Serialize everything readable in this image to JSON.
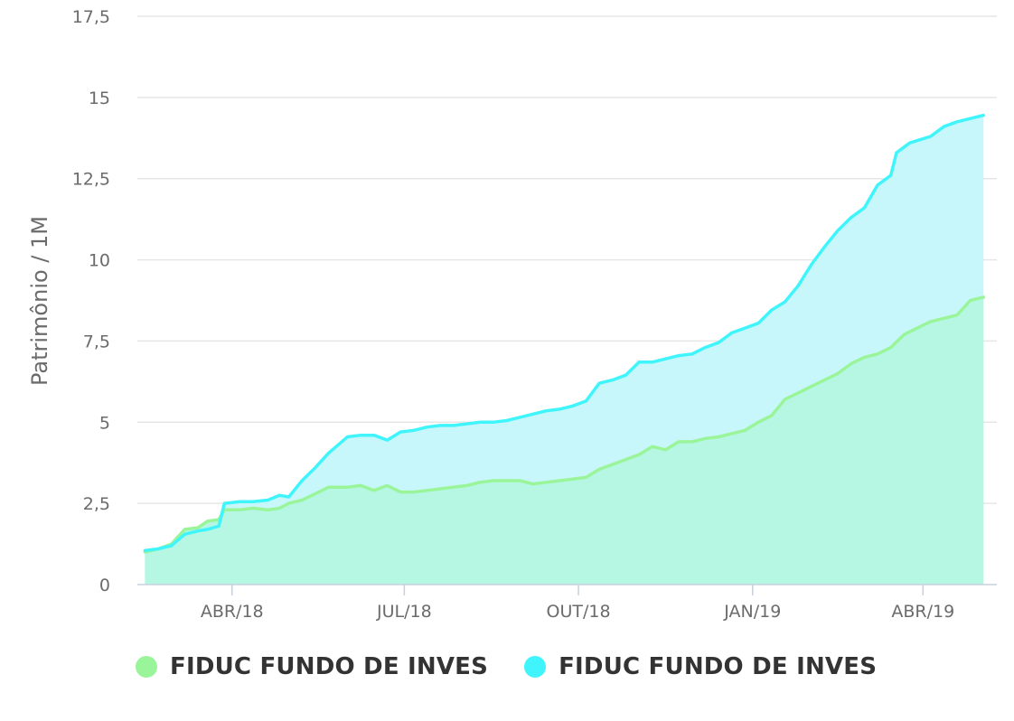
{
  "chart_data": {
    "type": "area",
    "ylabel": "Patrimônio / 1M",
    "xlabel": "",
    "ylim": [
      0,
      17.5
    ],
    "y_ticks": [
      "0",
      "2,5",
      "5",
      "7,5",
      "10",
      "12,5",
      "15",
      "17,5"
    ],
    "y_tick_values": [
      0,
      2.5,
      5,
      7.5,
      10,
      12.5,
      15,
      17.5
    ],
    "x_range": [
      "2018-02-10",
      "2019-05-10"
    ],
    "x_ticks": [
      {
        "label": "ABR/18",
        "date": "2018-04-01"
      },
      {
        "label": "JUL/18",
        "date": "2018-07-01"
      },
      {
        "label": "OUT/18",
        "date": "2018-10-01"
      },
      {
        "label": "JAN/19",
        "date": "2019-01-01"
      },
      {
        "label": "ABR/19",
        "date": "2019-04-01"
      }
    ],
    "grid": true,
    "legend_position": "bottom-left",
    "series": [
      {
        "name": "FIDUC FUNDO DE INVES",
        "color": "#9af59a",
        "fill": "#b6f7e4",
        "points": [
          [
            "2018-02-14",
            1.0
          ],
          [
            "2018-02-21",
            1.1
          ],
          [
            "2018-02-28",
            1.25
          ],
          [
            "2018-03-07",
            1.7
          ],
          [
            "2018-03-14",
            1.75
          ],
          [
            "2018-03-19",
            1.95
          ],
          [
            "2018-03-25",
            2.0
          ],
          [
            "2018-03-28",
            2.3
          ],
          [
            "2018-04-05",
            2.3
          ],
          [
            "2018-04-12",
            2.35
          ],
          [
            "2018-04-20",
            2.3
          ],
          [
            "2018-04-26",
            2.35
          ],
          [
            "2018-05-01",
            2.5
          ],
          [
            "2018-05-08",
            2.6
          ],
          [
            "2018-05-15",
            2.8
          ],
          [
            "2018-05-22",
            3.0
          ],
          [
            "2018-06-01",
            3.0
          ],
          [
            "2018-06-08",
            3.05
          ],
          [
            "2018-06-15",
            2.9
          ],
          [
            "2018-06-22",
            3.05
          ],
          [
            "2018-06-29",
            2.85
          ],
          [
            "2018-07-06",
            2.85
          ],
          [
            "2018-07-13",
            2.9
          ],
          [
            "2018-07-20",
            2.95
          ],
          [
            "2018-07-27",
            3.0
          ],
          [
            "2018-08-03",
            3.05
          ],
          [
            "2018-08-10",
            3.15
          ],
          [
            "2018-08-17",
            3.2
          ],
          [
            "2018-08-24",
            3.2
          ],
          [
            "2018-08-31",
            3.2
          ],
          [
            "2018-09-07",
            3.1
          ],
          [
            "2018-09-14",
            3.15
          ],
          [
            "2018-09-21",
            3.2
          ],
          [
            "2018-09-28",
            3.25
          ],
          [
            "2018-10-05",
            3.3
          ],
          [
            "2018-10-12",
            3.55
          ],
          [
            "2018-10-19",
            3.7
          ],
          [
            "2018-10-26",
            3.85
          ],
          [
            "2018-11-02",
            4.0
          ],
          [
            "2018-11-09",
            4.25
          ],
          [
            "2018-11-16",
            4.15
          ],
          [
            "2018-11-23",
            4.4
          ],
          [
            "2018-11-30",
            4.4
          ],
          [
            "2018-12-07",
            4.5
          ],
          [
            "2018-12-14",
            4.55
          ],
          [
            "2018-12-21",
            4.65
          ],
          [
            "2018-12-28",
            4.75
          ],
          [
            "2019-01-04",
            5.0
          ],
          [
            "2019-01-11",
            5.2
          ],
          [
            "2019-01-18",
            5.7
          ],
          [
            "2019-01-25",
            5.9
          ],
          [
            "2019-02-01",
            6.1
          ],
          [
            "2019-02-08",
            6.3
          ],
          [
            "2019-02-15",
            6.5
          ],
          [
            "2019-02-22",
            6.8
          ],
          [
            "2019-03-01",
            7.0
          ],
          [
            "2019-03-08",
            7.1
          ],
          [
            "2019-03-15",
            7.3
          ],
          [
            "2019-03-22",
            7.7
          ],
          [
            "2019-03-29",
            7.9
          ],
          [
            "2019-04-05",
            8.1
          ],
          [
            "2019-04-12",
            8.2
          ],
          [
            "2019-04-19",
            8.3
          ],
          [
            "2019-04-26",
            8.75
          ],
          [
            "2019-05-03",
            8.85
          ]
        ]
      },
      {
        "name": "FIDUC FUNDO DE INVES",
        "color": "#3ff5fb",
        "fill": "#c8f7fb",
        "points": [
          [
            "2018-02-14",
            1.05
          ],
          [
            "2018-02-21",
            1.1
          ],
          [
            "2018-02-28",
            1.2
          ],
          [
            "2018-03-07",
            1.55
          ],
          [
            "2018-03-14",
            1.65
          ],
          [
            "2018-03-19",
            1.7
          ],
          [
            "2018-03-25",
            1.8
          ],
          [
            "2018-03-28",
            2.5
          ],
          [
            "2018-04-05",
            2.55
          ],
          [
            "2018-04-12",
            2.55
          ],
          [
            "2018-04-20",
            2.6
          ],
          [
            "2018-04-26",
            2.75
          ],
          [
            "2018-05-01",
            2.7
          ],
          [
            "2018-05-08",
            3.2
          ],
          [
            "2018-05-15",
            3.6
          ],
          [
            "2018-05-22",
            4.05
          ],
          [
            "2018-06-01",
            4.55
          ],
          [
            "2018-06-08",
            4.6
          ],
          [
            "2018-06-15",
            4.6
          ],
          [
            "2018-06-22",
            4.45
          ],
          [
            "2018-06-29",
            4.7
          ],
          [
            "2018-07-06",
            4.75
          ],
          [
            "2018-07-13",
            4.85
          ],
          [
            "2018-07-20",
            4.9
          ],
          [
            "2018-07-27",
            4.9
          ],
          [
            "2018-08-03",
            4.95
          ],
          [
            "2018-08-10",
            5.0
          ],
          [
            "2018-08-17",
            5.0
          ],
          [
            "2018-08-24",
            5.05
          ],
          [
            "2018-08-31",
            5.15
          ],
          [
            "2018-09-07",
            5.25
          ],
          [
            "2018-09-14",
            5.35
          ],
          [
            "2018-09-21",
            5.4
          ],
          [
            "2018-09-28",
            5.5
          ],
          [
            "2018-10-05",
            5.65
          ],
          [
            "2018-10-12",
            6.2
          ],
          [
            "2018-10-19",
            6.3
          ],
          [
            "2018-10-26",
            6.45
          ],
          [
            "2018-11-02",
            6.85
          ],
          [
            "2018-11-09",
            6.85
          ],
          [
            "2018-11-16",
            6.95
          ],
          [
            "2018-11-23",
            7.05
          ],
          [
            "2018-11-30",
            7.1
          ],
          [
            "2018-12-07",
            7.3
          ],
          [
            "2018-12-14",
            7.45
          ],
          [
            "2018-12-21",
            7.75
          ],
          [
            "2018-12-28",
            7.9
          ],
          [
            "2019-01-04",
            8.05
          ],
          [
            "2019-01-11",
            8.45
          ],
          [
            "2019-01-18",
            8.7
          ],
          [
            "2019-01-25",
            9.2
          ],
          [
            "2019-02-01",
            9.85
          ],
          [
            "2019-02-08",
            10.4
          ],
          [
            "2019-02-15",
            10.9
          ],
          [
            "2019-02-22",
            11.3
          ],
          [
            "2019-03-01",
            11.6
          ],
          [
            "2019-03-08",
            12.3
          ],
          [
            "2019-03-15",
            12.6
          ],
          [
            "2019-03-18",
            13.3
          ],
          [
            "2019-03-25",
            13.6
          ],
          [
            "2019-04-05",
            13.8
          ],
          [
            "2019-04-12",
            14.1
          ],
          [
            "2019-04-19",
            14.25
          ],
          [
            "2019-04-26",
            14.35
          ],
          [
            "2019-05-03",
            14.45
          ]
        ]
      }
    ]
  }
}
